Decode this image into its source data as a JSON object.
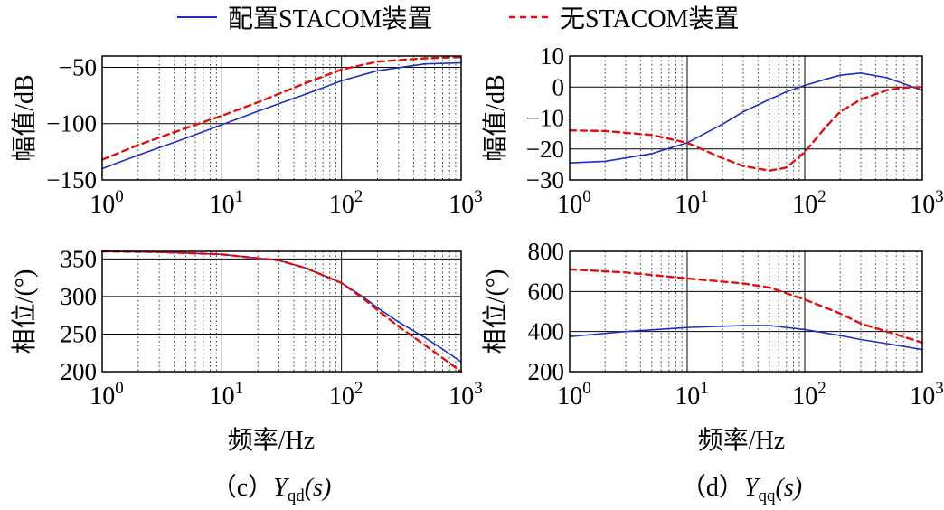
{
  "legend": {
    "items": [
      {
        "label": "配置STACOM装置",
        "color": "#1f2fbf",
        "dash": "solid"
      },
      {
        "label": "无STACOM装置",
        "color": "#e01010",
        "dash": "dashed"
      }
    ]
  },
  "xlabel": "频率/Hz",
  "captions": {
    "c": {
      "prefix": "（c）",
      "sym": "Y",
      "sub": "qd",
      "arg": "(s)"
    },
    "d": {
      "prefix": "（d）",
      "sym": "Y",
      "sub": "qq",
      "arg": "(s)"
    }
  },
  "chart_data": [
    {
      "id": "c-mag",
      "type": "line",
      "ylabel": "幅值/dB",
      "xscale": "log",
      "xlim": [
        1,
        1000
      ],
      "ylim": [
        -150,
        -40
      ],
      "yticks": [
        -50,
        -100,
        -150
      ],
      "ytick_labels": [
        "−50",
        "−100",
        "−150"
      ],
      "grid": true,
      "x": [
        1,
        2,
        5,
        10,
        20,
        50,
        100,
        200,
        500,
        1000
      ],
      "series": [
        {
          "name": "配置STACOM装置",
          "values": [
            -140,
            -128,
            -113,
            -101,
            -89,
            -74,
            -62,
            -53,
            -47,
            -46
          ]
        },
        {
          "name": "无STACOM装置",
          "values": [
            -132,
            -119,
            -104,
            -93,
            -81,
            -64,
            -52,
            -45,
            -42,
            -41
          ]
        }
      ]
    },
    {
      "id": "d-mag",
      "type": "line",
      "ylabel": "幅值/dB",
      "xscale": "log",
      "xlim": [
        1,
        1000
      ],
      "ylim": [
        -30,
        10
      ],
      "yticks": [
        10,
        0,
        -10,
        -20,
        -30
      ],
      "ytick_labels": [
        "10",
        "0",
        "−10",
        "−20",
        "−30"
      ],
      "grid": true,
      "x": [
        1,
        2,
        5,
        10,
        20,
        30,
        50,
        70,
        100,
        150,
        200,
        300,
        500,
        700,
        1000
      ],
      "series": [
        {
          "name": "配置STACOM装置",
          "values": [
            -24.5,
            -24,
            -21.5,
            -18,
            -12,
            -8,
            -4,
            -1.5,
            0.5,
            2.5,
            3.8,
            4.5,
            3,
            1,
            -1
          ]
        },
        {
          "name": "无STACOM装置",
          "values": [
            -14,
            -14.2,
            -15.5,
            -18,
            -23,
            -25.5,
            -27,
            -26,
            -21,
            -13,
            -8,
            -4,
            -1,
            -0.2,
            0
          ]
        }
      ]
    },
    {
      "id": "c-phase",
      "type": "line",
      "ylabel": "相位/(°)",
      "xscale": "log",
      "xlim": [
        1,
        1000
      ],
      "ylim": [
        200,
        360
      ],
      "yticks": [
        350,
        300,
        250,
        200
      ],
      "ytick_labels": [
        "350",
        "300",
        "250",
        "200"
      ],
      "grid": true,
      "x": [
        1,
        3,
        10,
        30,
        50,
        100,
        150,
        200,
        300,
        500,
        700,
        1000
      ],
      "series": [
        {
          "name": "配置STACOM装置",
          "values": [
            360,
            359,
            356,
            348,
            338,
            318,
            300,
            285,
            266,
            245,
            230,
            213
          ]
        },
        {
          "name": "无STACOM装置",
          "values": [
            360,
            359,
            356,
            348,
            338,
            318,
            298,
            282,
            260,
            235,
            218,
            200
          ]
        }
      ]
    },
    {
      "id": "d-phase",
      "type": "line",
      "ylabel": "相位/(°)",
      "xscale": "log",
      "xlim": [
        1,
        1000
      ],
      "ylim": [
        200,
        800
      ],
      "yticks": [
        800,
        600,
        400,
        200
      ],
      "ytick_labels": [
        "800",
        "600",
        "400",
        "200"
      ],
      "grid": true,
      "x": [
        1,
        3,
        10,
        30,
        50,
        100,
        200,
        300,
        500,
        1000
      ],
      "series": [
        {
          "name": "配置STACOM装置",
          "values": [
            375,
            400,
            420,
            430,
            430,
            410,
            380,
            360,
            340,
            310
          ]
        },
        {
          "name": "无STACOM装置",
          "values": [
            710,
            695,
            665,
            640,
            620,
            560,
            490,
            440,
            400,
            345
          ]
        }
      ]
    }
  ]
}
